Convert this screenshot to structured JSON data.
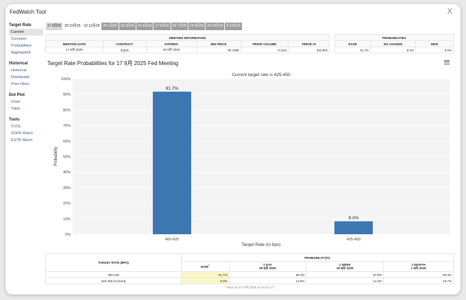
{
  "app": {
    "title": "FedWatch Tool",
    "close_glyph": "Ⅹ"
  },
  "sidebar": {
    "sections": [
      {
        "heading": "Target Rate",
        "items": [
          "Current",
          "Compare",
          "Probabilities",
          "Aggregated"
        ]
      },
      {
        "heading": "Historical",
        "items": [
          "Historical",
          "Downloads",
          "Prior Hikes"
        ]
      },
      {
        "heading": "Dot Plot",
        "items": [
          "Chart",
          "Table"
        ]
      },
      {
        "heading": "Tools",
        "items": [
          "CVOL",
          "SOFR Watch",
          "ESTR Watch"
        ]
      }
    ],
    "active_item": "Current"
  },
  "meeting_tabs": [
    {
      "label": "17 9月25",
      "state": "active"
    },
    {
      "label": "29 10月25",
      "state": "plain"
    },
    {
      "label": "10 12月25",
      "state": "plain"
    },
    {
      "label": "28 1月26",
      "state": "disabled"
    },
    {
      "label": "18 3月26",
      "state": "disabled"
    },
    {
      "label": "29 4月26",
      "state": "disabled"
    },
    {
      "label": "17 6月26",
      "state": "disabled"
    },
    {
      "label": "29 7月26",
      "state": "disabled"
    },
    {
      "label": "16 9月26",
      "state": "disabled"
    },
    {
      "label": "28 10月26",
      "state": "disabled"
    },
    {
      "label": "9 12月26",
      "state": "disabled"
    }
  ],
  "meeting_info": {
    "header": "MEETING INFORMATION",
    "columns": [
      "MEETING DATE",
      "CONTRACT",
      "EXPIRES",
      "MID PRICE",
      "PRIOR VOLUME",
      "PRIOR OI"
    ],
    "row": [
      "17 9月 2025",
      "ZQU5",
      "30 9月 2025",
      "95.7688",
      "74,541",
      "322,801"
    ]
  },
  "probabilities_summary": {
    "header": "PROBABILITIES",
    "columns": [
      "EASE",
      "NO CHANGE",
      "HIKE"
    ],
    "row": [
      "91.7%",
      "8.3%",
      "0.0%"
    ]
  },
  "chart": {
    "title": "Target Rate Probabilities for 17 9月 2025 Fed Meeting",
    "menu_icon": "hamburger-menu-icon",
    "logo_text": "Q"
  },
  "chart_data": {
    "type": "bar",
    "title": "Target Rate Probabilities for 17 9月 2025 Fed Meeting",
    "subtitle": "Current target rate is 425-450",
    "categories": [
      "400-425",
      "425-450"
    ],
    "values": [
      91.7,
      8.3
    ],
    "data_labels": [
      "91.7%",
      "8.3%"
    ],
    "xlabel": "Target Rate (in bps)",
    "ylabel": "Probability",
    "ylim": [
      0,
      100
    ],
    "yticks": [
      0,
      10,
      20,
      30,
      40,
      50,
      60,
      70,
      80,
      90,
      100
    ],
    "ytick_labels": [
      "0%",
      "10%",
      "20%",
      "30%",
      "40%",
      "50%",
      "60%",
      "70%",
      "80%",
      "90%",
      "100%"
    ],
    "bar_color": "#3d77b2",
    "grid": true,
    "legend": "none"
  },
  "prob_table": {
    "col_target": "TARGET RATE (BPS)",
    "col_prob": "PROBABILITY(%)",
    "sub_columns": [
      {
        "title": "NOW",
        "sup": "*",
        "date": ""
      },
      {
        "title": "1 DAY",
        "sup": "",
        "date": "29 8月 2025"
      },
      {
        "title": "1 WEEK",
        "sup": "",
        "date": "26 8月 2025"
      },
      {
        "title": "1 MONTH",
        "sup": "",
        "date": "1 8月 2025"
      }
    ],
    "rows": [
      {
        "rate": "400-425",
        "values": [
          "91.7%",
          "86.4%",
          "87.8%",
          "80.3%"
        ]
      },
      {
        "rate": "425-450 (Current)",
        "values": [
          "8.3%",
          "13.6%",
          "12.2%",
          "19.7%"
        ]
      }
    ],
    "footnote": "* Data as of 2 9月 2025 01:51:51 CT",
    "highlight_color": "#fbf6c8"
  }
}
